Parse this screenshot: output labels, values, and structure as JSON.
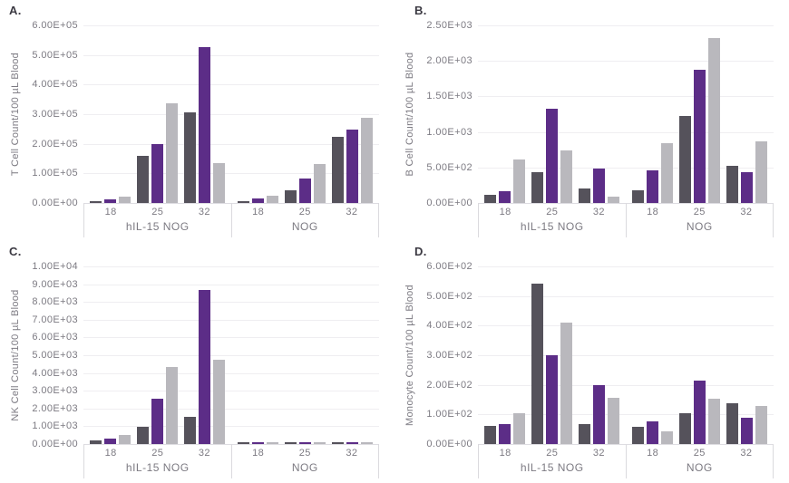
{
  "figure": {
    "bar_colors": {
      "dark_gray": "#55525b",
      "purple": "#5c2d87",
      "light_gray": "#b9b8bd"
    },
    "text_color": "#7c7a82",
    "panel_label_color": "#3b3942",
    "gridline_color": "#efeef1"
  },
  "chart_data": [
    {
      "type": "bar",
      "panel_label": "A.",
      "title": "",
      "xlabel": "",
      "ylabel": "T Cell Count/100 µL Blood",
      "ylim": [
        0,
        600000
      ],
      "ytick_labels": [
        "6.00E+05",
        "5.00E+05",
        "4.00E+05",
        "3.00E+05",
        "2.00E+05",
        "1.00E+05",
        "0.00E+00"
      ],
      "grid": true,
      "legend_position": "none",
      "groups": [
        {
          "label": "hIL-15 NOG",
          "categories": [
            "18",
            "25",
            "32"
          ]
        },
        {
          "label": "NOG",
          "categories": [
            "18",
            "25",
            "32"
          ]
        }
      ],
      "series": [
        {
          "name": "dark-gray",
          "color": "#55525b",
          "values": [
            [
              7000,
              158000,
              305000
            ],
            [
              7000,
              43000,
              225000
            ]
          ]
        },
        {
          "name": "purple",
          "color": "#5c2d87",
          "values": [
            [
              12000,
              198000,
              528000
            ],
            [
              15000,
              83000,
              248000
            ]
          ]
        },
        {
          "name": "light-gray",
          "color": "#b9b8bd",
          "values": [
            [
              22000,
              338000,
              136000
            ],
            [
              25000,
              133000,
              288000
            ]
          ]
        }
      ]
    },
    {
      "type": "bar",
      "panel_label": "B.",
      "title": "",
      "xlabel": "",
      "ylabel": "B Cell Count/100 µL Blood",
      "ylim": [
        0,
        2500
      ],
      "ytick_labels": [
        "2.50E+03",
        "2.00E+03",
        "1.50E+03",
        "1.00E+03",
        "5.00E+02",
        "0.00E+00"
      ],
      "grid": true,
      "legend_position": "none",
      "groups": [
        {
          "label": "hIL-15 NOG",
          "categories": [
            "18",
            "25",
            "32"
          ]
        },
        {
          "label": "NOG",
          "categories": [
            "18",
            "25",
            "32"
          ]
        }
      ],
      "series": [
        {
          "name": "dark-gray",
          "color": "#55525b",
          "values": [
            [
              110,
              440,
              210
            ],
            [
              180,
              1230,
              520
            ]
          ]
        },
        {
          "name": "purple",
          "color": "#5c2d87",
          "values": [
            [
              160,
              1330,
              490
            ],
            [
              465,
              1870,
              440
            ]
          ]
        },
        {
          "name": "light-gray",
          "color": "#b9b8bd",
          "values": [
            [
              610,
              740,
              90
            ],
            [
              840,
              2320,
              870
            ]
          ]
        }
      ]
    },
    {
      "type": "bar",
      "panel_label": "C.",
      "title": "",
      "xlabel": "",
      "ylabel": "NK Cell Count/100 µL Blood",
      "ylim": [
        0,
        10000
      ],
      "ytick_labels": [
        "1.00E+04",
        "9.00E+03",
        "8.00E+03",
        "7.00E+03",
        "6.00E+03",
        "5.00E+03",
        "4.00E+03",
        "3.00E+03",
        "2.00E+03",
        "1.00E+03",
        "0.00E+00"
      ],
      "grid": true,
      "legend_position": "none",
      "groups": [
        {
          "label": "hIL-15 NOG",
          "categories": [
            "18",
            "25",
            "32"
          ]
        },
        {
          "label": "NOG",
          "categories": [
            "18",
            "25",
            "32"
          ]
        }
      ],
      "series": [
        {
          "name": "dark-gray",
          "color": "#55525b",
          "values": [
            [
              200,
              970,
              1550
            ],
            [
              80,
              80,
              80
            ]
          ]
        },
        {
          "name": "purple",
          "color": "#5c2d87",
          "values": [
            [
              300,
              2550,
              8650
            ],
            [
              90,
              90,
              90
            ]
          ]
        },
        {
          "name": "light-gray",
          "color": "#b9b8bd",
          "values": [
            [
              520,
              4350,
              4750
            ],
            [
              60,
              70,
              60
            ]
          ]
        }
      ]
    },
    {
      "type": "bar",
      "panel_label": "D.",
      "title": "",
      "xlabel": "",
      "ylabel": "Monocyte Count/100 µL Blood",
      "ylim": [
        0,
        600
      ],
      "ytick_labels": [
        "6.00E+02",
        "5.00E+02",
        "4.00E+02",
        "3.00E+02",
        "2.00E+02",
        "1.00E+02",
        "0.00E+00"
      ],
      "grid": true,
      "legend_position": "none",
      "groups": [
        {
          "label": "hIL-15 NOG",
          "categories": [
            "18",
            "25",
            "32"
          ]
        },
        {
          "label": "NOG",
          "categories": [
            "18",
            "25",
            "32"
          ]
        }
      ],
      "series": [
        {
          "name": "dark-gray",
          "color": "#55525b",
          "values": [
            [
              60,
              542,
              66
            ],
            [
              59,
              105,
              138
            ]
          ]
        },
        {
          "name": "purple",
          "color": "#5c2d87",
          "values": [
            [
              67,
              299,
              199
            ],
            [
              76,
              215,
              88
            ]
          ]
        },
        {
          "name": "light-gray",
          "color": "#b9b8bd",
          "values": [
            [
              103,
              411,
              155
            ],
            [
              43,
              153,
              130
            ]
          ]
        }
      ]
    }
  ]
}
